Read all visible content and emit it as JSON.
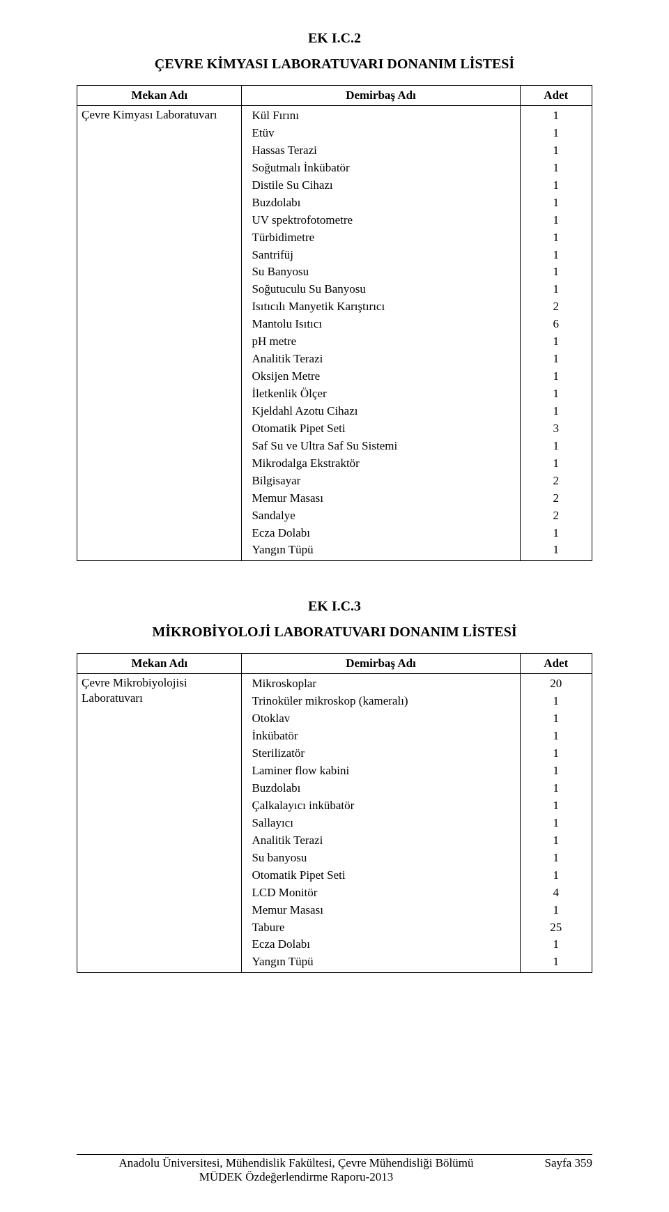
{
  "section1": {
    "heading": "EK I.C.2",
    "title": "ÇEVRE KİMYASI LABORATUVARI DONANIM LİSTESİ",
    "columns": {
      "mekan": "Mekan Adı",
      "demirbas": "Demirbaş Adı",
      "adet": "Adet"
    },
    "location": "Çevre Kimyası Laboratuvarı",
    "items": [
      {
        "name": "Kül Fırını",
        "count": 1
      },
      {
        "name": "Etüv",
        "count": 1
      },
      {
        "name": "Hassas Terazi",
        "count": 1
      },
      {
        "name": "Soğutmalı İnkübatör",
        "count": 1
      },
      {
        "name": "Distile Su Cihazı",
        "count": 1
      },
      {
        "name": "Buzdolabı",
        "count": 1
      },
      {
        "name": "UV spektrofotometre",
        "count": 1
      },
      {
        "name": "Türbidimetre",
        "count": 1
      },
      {
        "name": "Santrifüj",
        "count": 1
      },
      {
        "name": "Su Banyosu",
        "count": 1
      },
      {
        "name": "Soğutuculu Su Banyosu",
        "count": 1
      },
      {
        "name": "Isıtıcılı Manyetik Karıştırıcı",
        "count": 2
      },
      {
        "name": "Mantolu Isıtıcı",
        "count": 6
      },
      {
        "name": "pH metre",
        "count": 1
      },
      {
        "name": "Analitik Terazi",
        "count": 1
      },
      {
        "name": "Oksijen Metre",
        "count": 1
      },
      {
        "name": "İletkenlik Ölçer",
        "count": 1
      },
      {
        "name": "Kjeldahl Azotu Cihazı",
        "count": 1
      },
      {
        "name": "Otomatik Pipet Seti",
        "count": 3
      },
      {
        "name": "Saf Su ve Ultra Saf Su Sistemi",
        "count": 1
      },
      {
        "name": "Mikrodalga Ekstraktör",
        "count": 1
      },
      {
        "name": "Bilgisayar",
        "count": 2
      },
      {
        "name": "Memur Masası",
        "count": 2
      },
      {
        "name": "Sandalye",
        "count": 2
      },
      {
        "name": "Ecza Dolabı",
        "count": 1
      },
      {
        "name": "Yangın Tüpü",
        "count": 1
      }
    ]
  },
  "section2": {
    "heading": "EK I.C.3",
    "title": "MİKROBİYOLOJİ LABORATUVARI DONANIM LİSTESİ",
    "columns": {
      "mekan": "Mekan Adı",
      "demirbas": "Demirbaş Adı",
      "adet": "Adet"
    },
    "location_lines": [
      "Çevre Mikrobiyolojisi",
      "Laboratuvarı"
    ],
    "items": [
      {
        "name": "Mikroskoplar",
        "count": 20
      },
      {
        "name": "Trinoküler mikroskop (kameralı)",
        "count": 1
      },
      {
        "name": "Otoklav",
        "count": 1
      },
      {
        "name": "İnkübatör",
        "count": 1
      },
      {
        "name": "Sterilizatör",
        "count": 1
      },
      {
        "name": "Laminer flow kabini",
        "count": 1
      },
      {
        "name": "Buzdolabı",
        "count": 1
      },
      {
        "name": "Çalkalayıcı inkübatör",
        "count": 1
      },
      {
        "name": "Sallayıcı",
        "count": 1
      },
      {
        "name": "Analitik Terazi",
        "count": 1
      },
      {
        "name": "Su banyosu",
        "count": 1
      },
      {
        "name": "Otomatik Pipet Seti",
        "count": 1
      },
      {
        "name": "LCD Monitör",
        "count": 4
      },
      {
        "name": "Memur Masası",
        "count": 1
      },
      {
        "name": "Tabure",
        "count": 25
      },
      {
        "name": "Ecza Dolabı",
        "count": 1
      },
      {
        "name": "Yangın Tüpü",
        "count": 1
      }
    ]
  },
  "footer": {
    "line1": "Anadolu Üniversitesi, Mühendislik Fakültesi, Çevre Mühendisliği Bölümü",
    "line2": "MÜDEK Özdeğerlendirme Raporu-2013",
    "page": "Sayfa 359"
  },
  "style": {
    "font_family": "Times New Roman",
    "heading_fontsize_pt": 15,
    "body_fontsize_pt": 12.5,
    "border_color": "#000000",
    "text_color": "#000000",
    "background_color": "#ffffff"
  }
}
